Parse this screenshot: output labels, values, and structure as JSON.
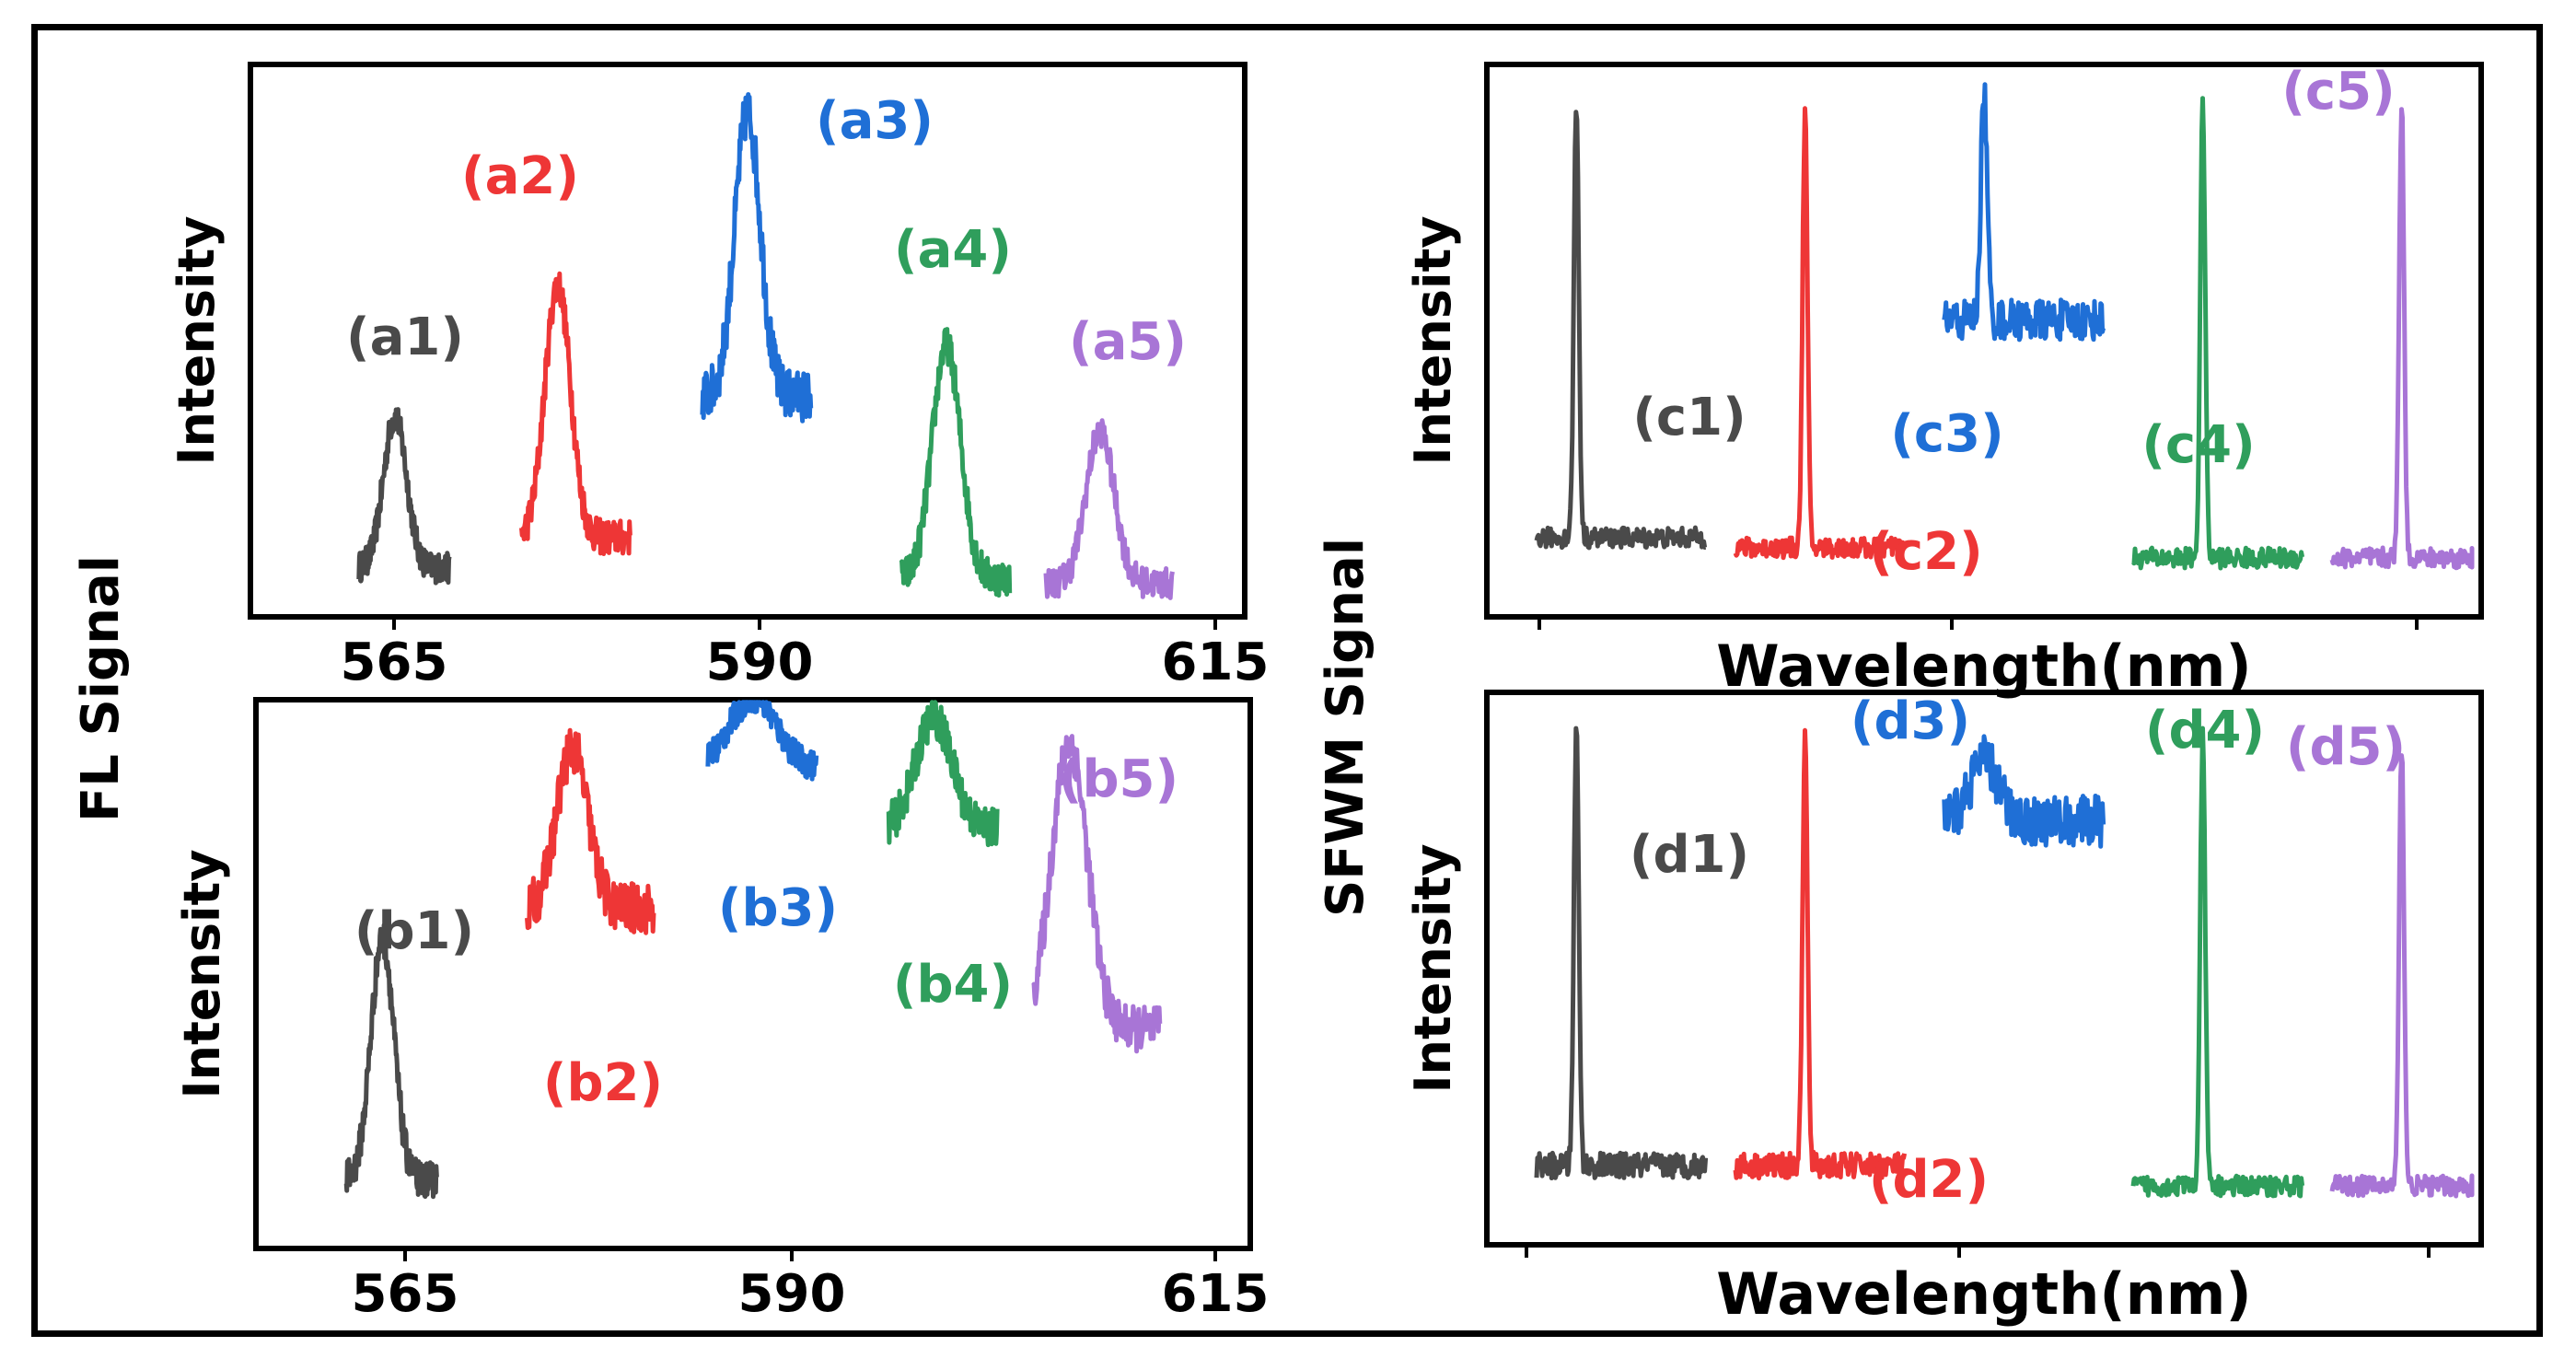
{
  "figure": {
    "left_group_label": "FL Signal",
    "right_group_label": "SFWM Signal"
  },
  "colors": {
    "1": "#4a4a4a",
    "2": "#ee3636",
    "3": "#1f6fd6",
    "4": "#2f9e5c",
    "5": "#a875d6"
  },
  "chart_data": [
    {
      "id": "a",
      "type": "line",
      "ylabel": "Intensity",
      "xlabel": "",
      "x_ticks": [
        "565",
        "590",
        "615"
      ],
      "xlim": [
        562,
        617
      ],
      "series": [
        {
          "name": "(a1)",
          "xrange": [
            568,
            573
          ],
          "baseline": 0.06,
          "peak_at": 570.0,
          "peak": 0.36,
          "width": 0.9,
          "noise": 0.03
        },
        {
          "name": "(a2)",
          "xrange": [
            577,
            583
          ],
          "baseline": 0.12,
          "peak_at": 579.0,
          "peak": 0.62,
          "width": 1.0,
          "noise": 0.035
        },
        {
          "name": "(a3)",
          "xrange": [
            587,
            593
          ],
          "baseline": 0.4,
          "peak_at": 589.5,
          "peak": 0.96,
          "width": 1.0,
          "noise": 0.05
        },
        {
          "name": "(a4)",
          "xrange": [
            598,
            604
          ],
          "baseline": 0.04,
          "peak_at": 600.5,
          "peak": 0.5,
          "width": 1.1,
          "noise": 0.035
        },
        {
          "name": "(a5)",
          "xrange": [
            606,
            613
          ],
          "baseline": 0.03,
          "peak_at": 609.0,
          "peak": 0.33,
          "width": 1.1,
          "noise": 0.03
        }
      ],
      "labels": [
        "(a1)",
        "(a2)",
        "(a3)",
        "(a4)",
        "(a5)"
      ]
    },
    {
      "id": "b",
      "type": "line",
      "ylabel": "Intensity",
      "xlabel": "",
      "x_ticks": [
        "565",
        "590",
        "615"
      ],
      "xlim": [
        562,
        617
      ],
      "series": [
        {
          "name": "(b1)",
          "xrange": [
            567,
            572
          ],
          "baseline": 0.1,
          "peak_at": 569.0,
          "peak": 0.58,
          "width": 0.9,
          "noise": 0.035
        },
        {
          "name": "(b2)",
          "xrange": [
            577,
            584
          ],
          "baseline": 0.64,
          "peak_at": 579.5,
          "peak": 0.96,
          "width": 1.2,
          "noise": 0.05
        },
        {
          "name": "(b3)",
          "xrange": [
            587,
            593
          ],
          "baseline": 0.92,
          "peak_at": 589.5,
          "peak": 1.06,
          "width": 1.8,
          "noise": 0.03
        },
        {
          "name": "(b4)",
          "xrange": [
            597,
            603
          ],
          "baseline": 0.8,
          "peak_at": 599.5,
          "peak": 1.02,
          "width": 1.4,
          "noise": 0.04
        },
        {
          "name": "(b5)",
          "xrange": [
            605,
            612
          ],
          "baseline": 0.4,
          "peak_at": 607.0,
          "peak": 0.97,
          "width": 1.4,
          "noise": 0.045
        }
      ],
      "labels": [
        "(b1)",
        "(b2)",
        "(b3)",
        "(b4)",
        "(b5)"
      ]
    },
    {
      "id": "c",
      "type": "line",
      "ylabel": "Intensity",
      "xlabel": "Wavelength(nm)",
      "x_ticks": [
        "",
        "",
        ""
      ],
      "xlim": [
        0,
        100
      ],
      "series": [
        {
          "name": "(c1)",
          "xrange": [
            5,
            22
          ],
          "baseline": 0.12,
          "peak_at": 9.0,
          "peak": 0.98,
          "width": 0.35,
          "noise": 0.02
        },
        {
          "name": "(c2)",
          "xrange": [
            25,
            42
          ],
          "baseline": 0.1,
          "peak_at": 32.0,
          "peak": 0.96,
          "width": 0.35,
          "noise": 0.02
        },
        {
          "name": "(c3)",
          "xrange": [
            46,
            62
          ],
          "baseline": 0.55,
          "peak_at": 50.0,
          "peak": 1.0,
          "width": 0.45,
          "noise": 0.04
        },
        {
          "name": "(c4)",
          "xrange": [
            65,
            82
          ],
          "baseline": 0.08,
          "peak_at": 72.0,
          "peak": 0.98,
          "width": 0.35,
          "noise": 0.02
        },
        {
          "name": "(c5)",
          "xrange": [
            85,
            102
          ],
          "baseline": 0.08,
          "peak_at": 92.0,
          "peak": 0.98,
          "width": 0.35,
          "noise": 0.02
        }
      ],
      "labels": [
        "(c1)",
        "(c2)",
        "(c3)",
        "(c4)",
        "(c5)"
      ]
    },
    {
      "id": "d",
      "type": "line",
      "ylabel": "Intensity",
      "xlabel": "Wavelength(nm)",
      "x_ticks": [
        "",
        "",
        ""
      ],
      "xlim": [
        0,
        100
      ],
      "series": [
        {
          "name": "(d1)",
          "xrange": [
            5,
            22
          ],
          "baseline": 0.12,
          "peak_at": 9.0,
          "peak": 0.98,
          "width": 0.35,
          "noise": 0.025
        },
        {
          "name": "(d2)",
          "xrange": [
            25,
            42
          ],
          "baseline": 0.12,
          "peak_at": 32.0,
          "peak": 0.97,
          "width": 0.35,
          "noise": 0.025
        },
        {
          "name": "(d3)",
          "xrange": [
            46,
            62
          ],
          "baseline": 0.8,
          "peak_at": 50.0,
          "peak": 0.92,
          "width": 2.0,
          "noise": 0.05
        },
        {
          "name": "(d4)",
          "xrange": [
            65,
            82
          ],
          "baseline": 0.08,
          "peak_at": 72.0,
          "peak": 0.97,
          "width": 0.35,
          "noise": 0.02
        },
        {
          "name": "(d5)",
          "xrange": [
            85,
            102
          ],
          "baseline": 0.08,
          "peak_at": 92.0,
          "peak": 0.95,
          "width": 0.35,
          "noise": 0.02
        }
      ],
      "labels": [
        "(d1)",
        "(d2)",
        "(d3)",
        "(d4)",
        "(d5)"
      ]
    }
  ]
}
